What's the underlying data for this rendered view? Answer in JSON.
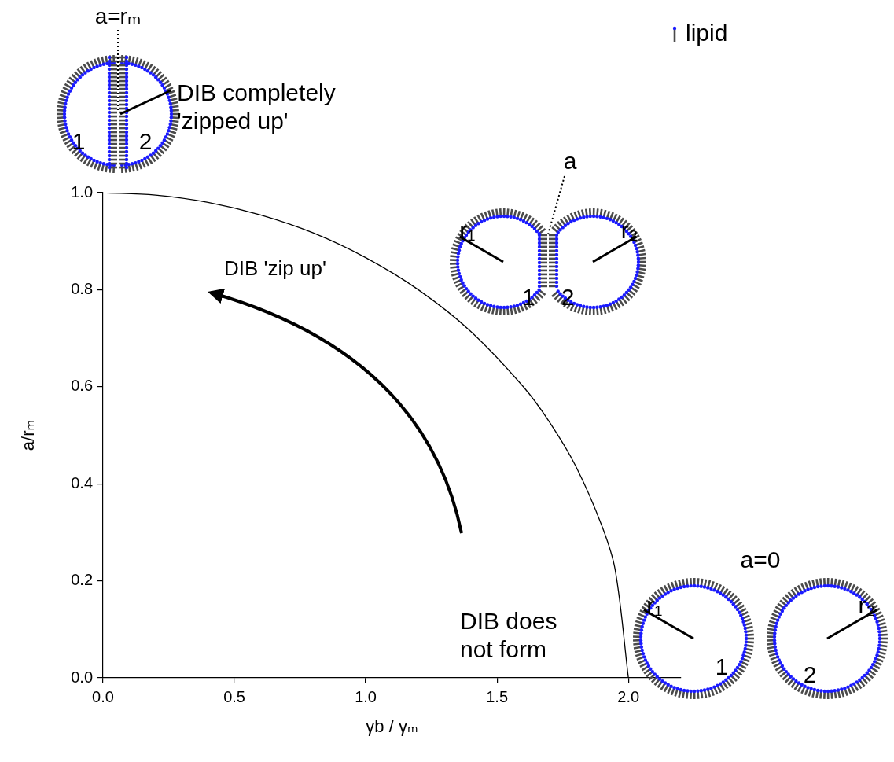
{
  "chart_data": {
    "type": "line",
    "xlabel": "γb / γₘ",
    "ylabel": "a/rₘ",
    "x": [
      0,
      0.2,
      0.4,
      0.6,
      0.8,
      1.0,
      1.2,
      1.4,
      1.6,
      1.7,
      1.8,
      1.9,
      1.95,
      2.0
    ],
    "values": [
      1.0,
      0.995,
      0.98,
      0.954,
      0.917,
      0.866,
      0.8,
      0.714,
      0.6,
      0.527,
      0.436,
      0.312,
      0.222,
      0.0
    ],
    "color": "#000000",
    "xlim": [
      0,
      2.2
    ],
    "xticks": [
      {
        "value": 0,
        "label": "0.0"
      },
      0.5,
      {
        "value": 1,
        "label": "1.0"
      },
      1.5,
      {
        "value": 2,
        "label": "2.0"
      }
    ],
    "ylim": [
      0,
      1
    ],
    "yticks": [
      {
        "value": 0,
        "label": "0.0"
      },
      0.2,
      0.4,
      0.6,
      0.8,
      {
        "value": 1,
        "label": "1.0"
      }
    ],
    "grid": false
  },
  "arrow_label": "DIB 'zip up'",
  "region_label": "DIB does not form",
  "key_label": "lipid",
  "diagrams": {
    "zipped": {
      "label": "a=rₘ",
      "caption": "DIB completely 'zipped up'",
      "droplets": [
        "1",
        "2"
      ]
    },
    "contact": {
      "label": "a",
      "radii": [
        "r₁",
        "r₂"
      ],
      "droplets": [
        "1",
        "2"
      ]
    },
    "separate": {
      "label": "a=0",
      "radii": [
        "r₁",
        "r₂"
      ],
      "droplets": [
        "1",
        "2"
      ]
    }
  }
}
